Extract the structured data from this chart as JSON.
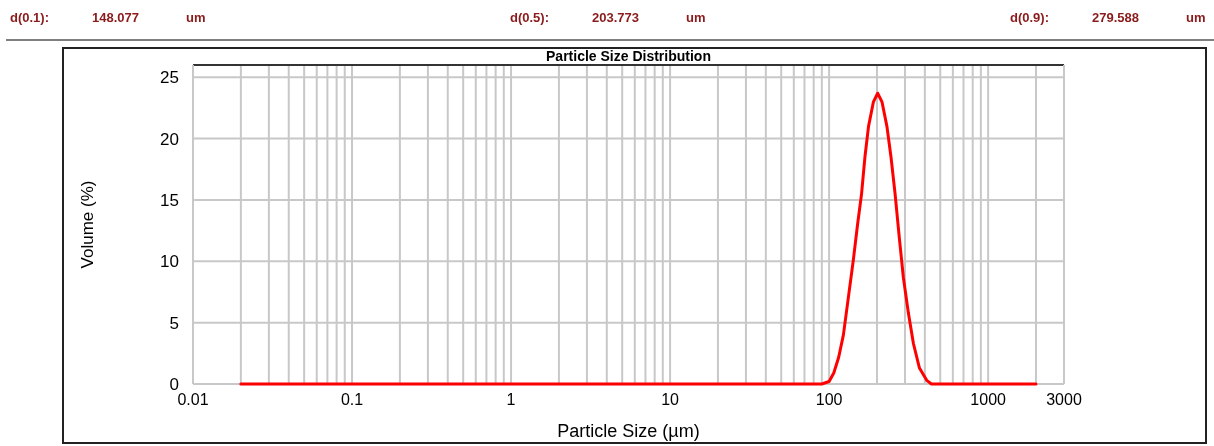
{
  "chart_data": {
    "type": "line",
    "title": "Particle Size Distribution",
    "xlabel": "Particle Size (µm)",
    "ylabel": "Volume (%)",
    "annotations": [
      "d(0.1):",
      "148.077",
      "um",
      "d(0.5):",
      "203.773",
      "um",
      "d(0.9):",
      "279.588",
      "um"
    ],
    "log": "x",
    "grid": true,
    "marker": "none",
    "line_style": "solid",
    "xlim": [
      0.01,
      3000
    ],
    "ylim": [
      0,
      26
    ],
    "xticks": [
      0.01,
      {
        "value": 0.02,
        "label": null
      },
      {
        "value": 0.03,
        "label": null
      },
      {
        "value": 0.04,
        "label": null
      },
      {
        "value": 0.05,
        "label": null
      },
      {
        "value": 0.06,
        "label": null
      },
      {
        "value": 0.07,
        "label": null
      },
      {
        "value": 0.08,
        "label": null
      },
      {
        "value": 0.09,
        "label": null
      },
      0.1,
      {
        "value": 0.2,
        "label": null
      },
      {
        "value": 0.3,
        "label": null
      },
      {
        "value": 0.4,
        "label": null
      },
      {
        "value": 0.5,
        "label": null
      },
      {
        "value": 0.6,
        "label": null
      },
      {
        "value": 0.7,
        "label": null
      },
      {
        "value": 0.8,
        "label": null
      },
      {
        "value": 0.9,
        "label": null
      },
      1,
      {
        "value": 2,
        "label": null
      },
      {
        "value": 3,
        "label": null
      },
      {
        "value": 4,
        "label": null
      },
      {
        "value": 5,
        "label": null
      },
      {
        "value": 6,
        "label": null
      },
      {
        "value": 7,
        "label": null
      },
      {
        "value": 8,
        "label": null
      },
      {
        "value": 9,
        "label": null
      },
      10,
      {
        "value": 20,
        "label": null
      },
      {
        "value": 30,
        "label": null
      },
      {
        "value": 40,
        "label": null
      },
      {
        "value": 50,
        "label": null
      },
      {
        "value": 60,
        "label": null
      },
      {
        "value": 70,
        "label": null
      },
      {
        "value": 80,
        "label": null
      },
      {
        "value": 90,
        "label": null
      },
      100,
      {
        "value": 200,
        "label": null
      },
      {
        "value": 300,
        "label": null
      },
      {
        "value": 400,
        "label": null
      },
      {
        "value": 500,
        "label": null
      },
      {
        "value": 600,
        "label": null
      },
      {
        "value": 700,
        "label": null
      },
      {
        "value": 800,
        "label": null
      },
      {
        "value": 900,
        "label": null
      },
      1000,
      {
        "value": 2000,
        "label": null
      },
      3000
    ],
    "yticks": [
      0,
      5,
      10,
      15,
      20,
      25
    ],
    "series": [
      {
        "color": "#ff0000",
        "x": [
          0.02,
          90,
          100,
          107,
          115,
          123,
          132,
          142,
          151,
          160,
          168,
          177,
          190,
          202,
          215,
          231,
          245,
          260,
          276,
          293,
          315,
          339,
          370,
          411,
          440,
          475,
          2000
        ],
        "values": [
          0,
          0,
          0.2,
          0.9,
          2.2,
          4,
          7,
          10.1,
          13,
          15.5,
          18.5,
          21,
          23,
          23.7,
          23,
          21,
          18.5,
          15.5,
          12,
          8.7,
          5.8,
          3.3,
          1.3,
          0.3,
          0,
          0,
          0
        ]
      }
    ]
  }
}
